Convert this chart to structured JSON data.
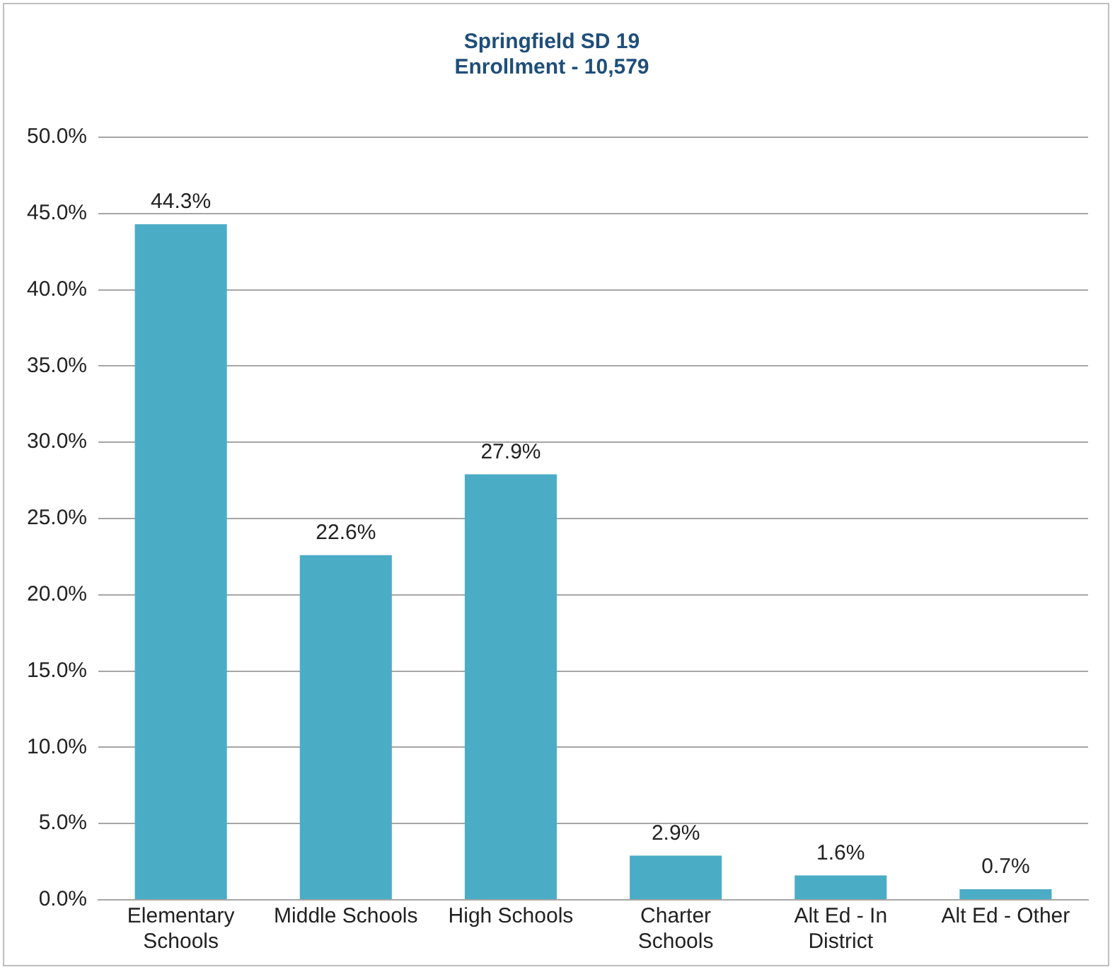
{
  "chart_data": {
    "type": "bar",
    "title": [
      "Springfield SD 19",
      "Enrollment - 10,579"
    ],
    "categories": [
      "Elementary Schools",
      "Middle Schools",
      "High Schools",
      "Charter Schools",
      "Alt Ed - In District",
      "Alt Ed - Other"
    ],
    "values": [
      44.3,
      22.6,
      27.9,
      2.9,
      1.6,
      0.7
    ],
    "value_labels": [
      "44.3%",
      "22.6%",
      "27.9%",
      "2.9%",
      "1.6%",
      "0.7%"
    ],
    "color": "#4bacc6",
    "ylim": [
      0,
      50
    ],
    "yticks": [
      {
        "value": 0,
        "label": "0.0%"
      },
      {
        "value": 5,
        "label": "5.0%"
      },
      {
        "value": 10,
        "label": "10.0%"
      },
      {
        "value": 15,
        "label": "15.0%"
      },
      {
        "value": 20,
        "label": "20.0%"
      },
      {
        "value": 25,
        "label": "25.0%"
      },
      {
        "value": 30,
        "label": "30.0%"
      },
      {
        "value": 35,
        "label": "35.0%"
      },
      {
        "value": 40,
        "label": "40.0%"
      },
      {
        "value": 45,
        "label": "45.0%"
      },
      {
        "value": 50,
        "label": "50.0%"
      }
    ],
    "grid": "y"
  }
}
